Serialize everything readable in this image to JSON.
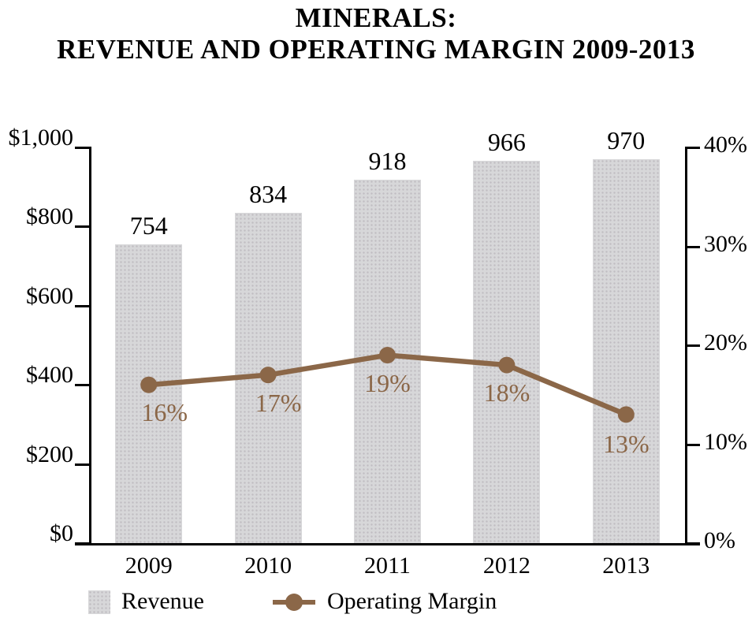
{
  "title": {
    "line1": "MINERALS:",
    "line2": "REVENUE AND OPERATING MARGIN 2009-2013"
  },
  "colors": {
    "bar": "#d7d7d9",
    "line": "#8b6748",
    "axis": "#000000",
    "text": "#000000"
  },
  "legend": {
    "revenue_label": "Revenue",
    "margin_label": "Operating Margin"
  },
  "chart_data": {
    "type": "bar+line",
    "title": "MINERALS: REVENUE AND OPERATING MARGIN 2009-2013",
    "categories": [
      "2009",
      "2010",
      "2011",
      "2012",
      "2013"
    ],
    "series": [
      {
        "name": "Revenue",
        "type": "bar",
        "axis": "left",
        "values": [
          754,
          834,
          918,
          966,
          970
        ],
        "labels": [
          "754",
          "834",
          "918",
          "966",
          "970"
        ]
      },
      {
        "name": "Operating Margin",
        "type": "line",
        "axis": "right",
        "values": [
          16,
          17,
          19,
          18,
          13
        ],
        "labels": [
          "16%",
          "17%",
          "19%",
          "18%",
          "13%"
        ],
        "label_dx": [
          20,
          13,
          0,
          0,
          0
        ],
        "label_dy": [
          0,
          0,
          0,
          0,
          2
        ]
      }
    ],
    "left_axis": {
      "range": [
        0,
        1000
      ],
      "ticks": [
        0,
        200,
        400,
        600,
        800,
        1000
      ],
      "labels": [
        "$0",
        "$200",
        "$400",
        "$600",
        "$800",
        "$1,000"
      ]
    },
    "right_axis": {
      "range": [
        0,
        40
      ],
      "ticks": [
        0,
        10,
        20,
        30,
        40
      ],
      "labels": [
        "0%",
        "10%",
        "20%",
        "30%",
        "40%"
      ]
    },
    "grid": false,
    "legend_position": "bottom-left"
  }
}
